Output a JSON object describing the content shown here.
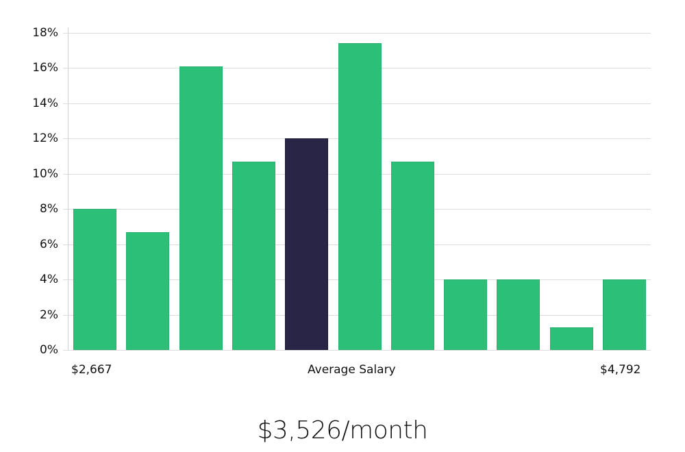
{
  "chart_data": {
    "type": "bar",
    "title": "",
    "xlabel": "Average Salary",
    "ylabel": "",
    "ylim": [
      0,
      18
    ],
    "yticks": [
      "0%",
      "2%",
      "4%",
      "6%",
      "8%",
      "10%",
      "12%",
      "14%",
      "16%",
      "18%"
    ],
    "grid": true,
    "x_range_labels": {
      "min": "$2,667",
      "max": "$4,792"
    },
    "categories": [
      "1",
      "2",
      "3",
      "4",
      "5",
      "6",
      "7",
      "8",
      "9",
      "10",
      "11"
    ],
    "values": [
      8.0,
      6.7,
      16.1,
      10.7,
      12.0,
      17.4,
      10.7,
      4.0,
      4.0,
      1.3,
      4.0
    ],
    "highlight_index": 4,
    "colors": {
      "bar": "#2bbf78",
      "highlight": "#292546",
      "grid": "#dcdcdc"
    }
  },
  "axis": {
    "min_label": "$2,667",
    "center_label": "Average Salary",
    "max_label": "$4,792"
  },
  "headline": "$3,526/month"
}
